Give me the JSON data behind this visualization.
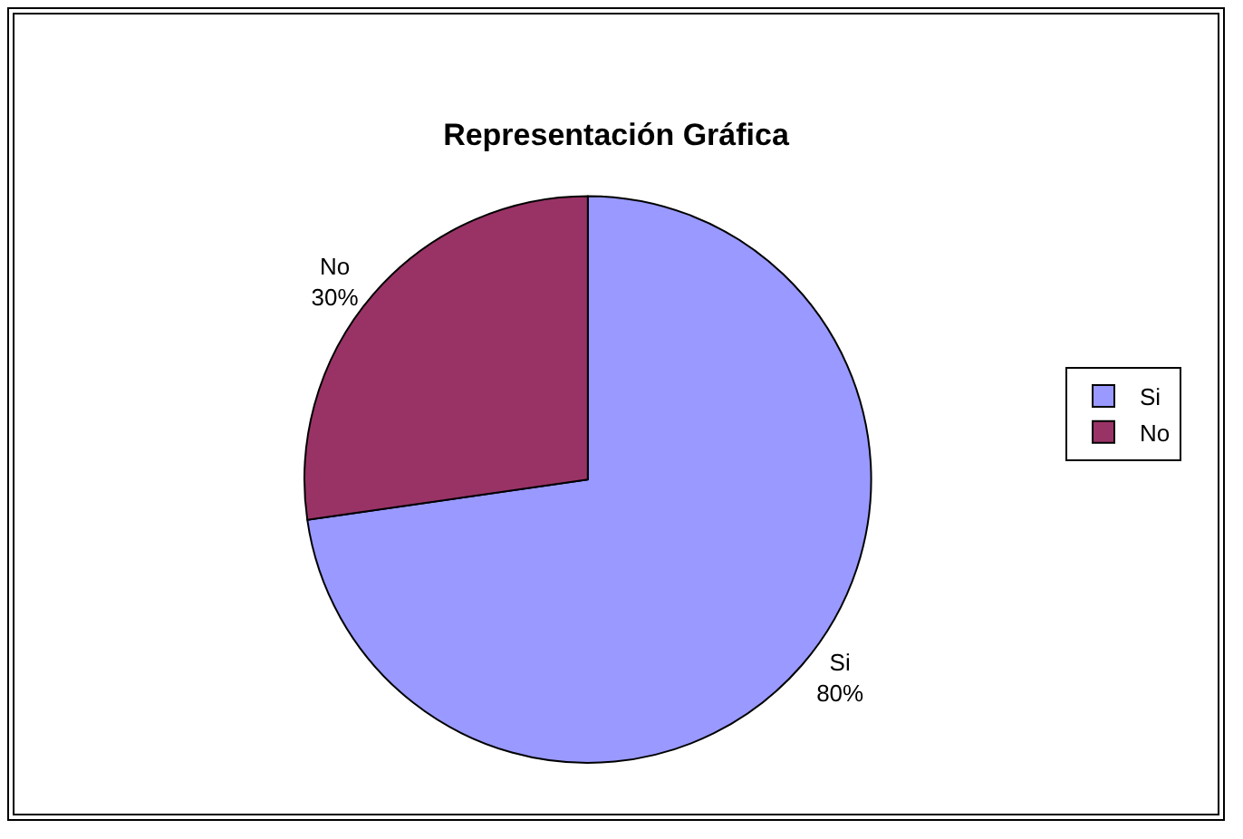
{
  "chart_data": {
    "type": "pie",
    "title": "Representación Gráfica",
    "categories": [
      "Si",
      "No"
    ],
    "values": [
      80,
      30
    ],
    "value_labels": [
      "80%",
      "30%"
    ],
    "colors": [
      "#9999ff",
      "#993366"
    ],
    "legend": "right"
  }
}
